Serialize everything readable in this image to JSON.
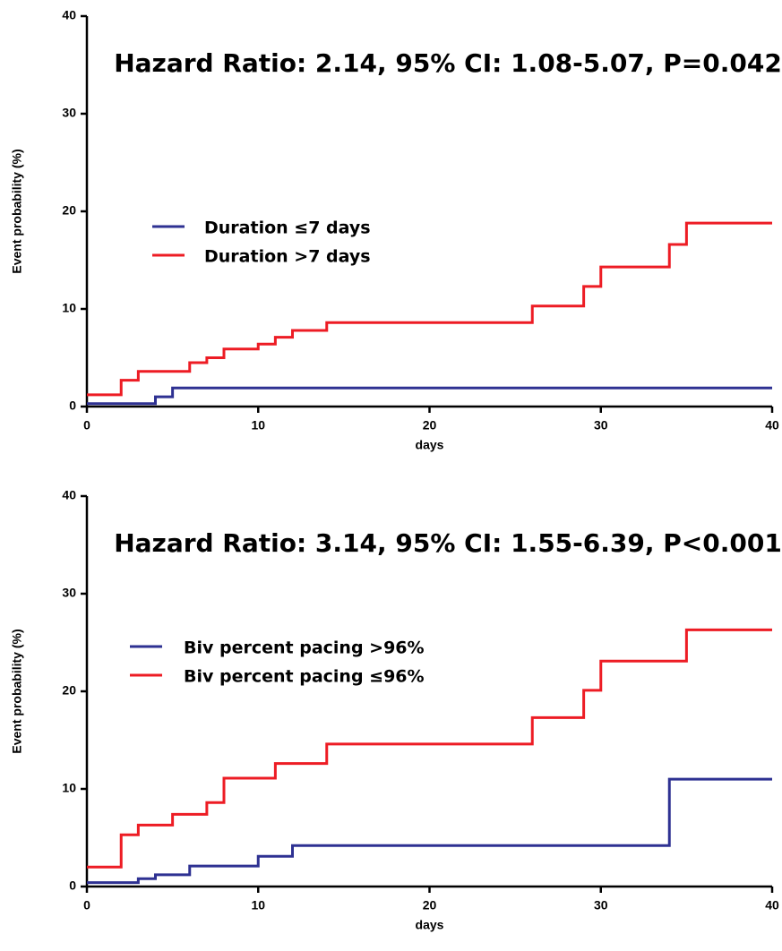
{
  "chart_data": [
    {
      "type": "step",
      "annotation": "Hazard Ratio: 2.14, 95% CI: 1.08-5.07, P=0.042",
      "xlabel": "days",
      "ylabel": "Event probability (%)",
      "xlim": [
        0,
        40
      ],
      "ylim": [
        0,
        40
      ],
      "xticks": [
        0,
        10,
        20,
        30,
        40
      ],
      "yticks": [
        0,
        10,
        20,
        30,
        40
      ],
      "series": [
        {
          "name": "Duration ≤7 days",
          "color": "#2e3192",
          "x": [
            0,
            4,
            5,
            40
          ],
          "values": [
            0.3,
            1.0,
            1.9,
            1.9
          ]
        },
        {
          "name": "Duration >7 days",
          "color": "#ed1c24",
          "x": [
            0,
            2,
            3,
            6,
            7,
            8,
            10,
            11,
            12,
            14,
            26,
            29,
            30,
            34,
            35,
            40
          ],
          "values": [
            1.2,
            2.7,
            3.6,
            4.5,
            5.0,
            5.9,
            6.4,
            7.1,
            7.8,
            8.6,
            10.3,
            12.3,
            14.3,
            16.6,
            18.8,
            18.8
          ]
        }
      ]
    },
    {
      "type": "step",
      "annotation": "Hazard Ratio: 3.14, 95% CI: 1.55-6.39, P<0.001",
      "xlabel": "days",
      "ylabel": "Event probability (%)",
      "xlim": [
        0,
        40
      ],
      "ylim": [
        0,
        40
      ],
      "xticks": [
        0,
        10,
        20,
        30,
        40
      ],
      "yticks": [
        0,
        10,
        20,
        30,
        40
      ],
      "series": [
        {
          "name": "Biv percent pacing >96%",
          "color": "#2e3192",
          "x": [
            0,
            3,
            4,
            6,
            10,
            12,
            34,
            40
          ],
          "values": [
            0.4,
            0.8,
            1.2,
            2.1,
            3.1,
            4.2,
            11.0,
            11.0
          ]
        },
        {
          "name": "Biv percent pacing ≤96%",
          "color": "#ed1c24",
          "x": [
            0,
            2,
            3,
            5,
            7,
            8,
            11,
            14,
            26,
            29,
            30,
            35,
            40
          ],
          "values": [
            2.0,
            5.3,
            6.3,
            7.4,
            8.6,
            11.1,
            12.6,
            14.6,
            17.3,
            20.1,
            23.1,
            26.3,
            26.3
          ]
        }
      ]
    }
  ]
}
